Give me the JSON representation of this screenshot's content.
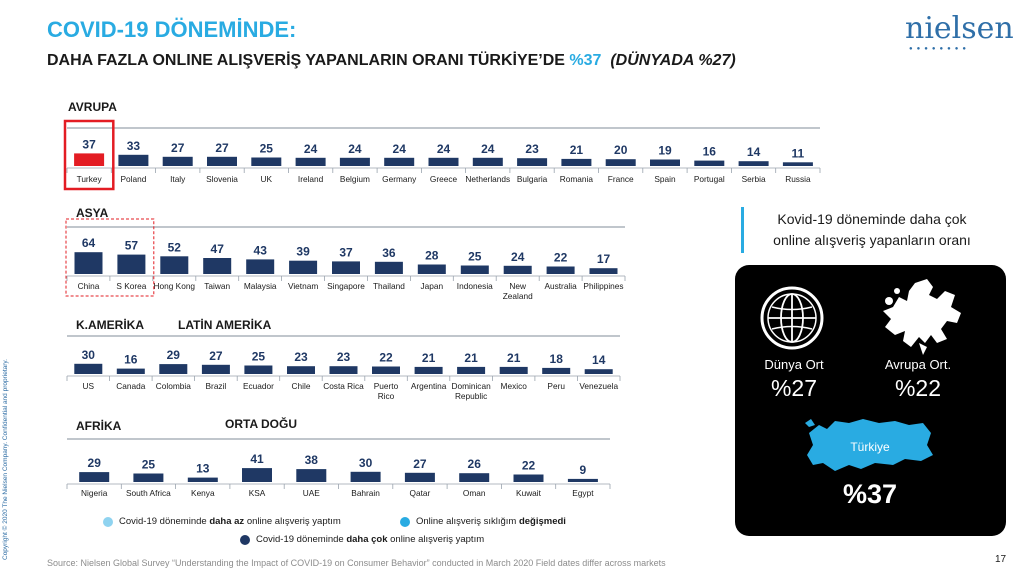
{
  "header": {
    "title": "COVID-19 DÖNEMİNDE:",
    "subtitle_main": "DAHA FAZLA ONLINE ALIŞVERİŞ YAPANLARIN ORANI TÜRKİYE’DE ",
    "subtitle_highlight": "%37",
    "subtitle_italic": "(DÜNYADA %27)"
  },
  "logo": {
    "text": "nielsen",
    "icon": "nielsen-logo-dots"
  },
  "side_copyright": "Copyright © 2020 The Nielsen Company. Confidential and proprietary.",
  "regions": {
    "avrupa": "AVRUPA",
    "asya": "ASYA",
    "k_amerika": "K.AMERİKA",
    "latin_amerika": "LATİN AMERİKA",
    "afrika": "AFRİKA",
    "orta_dogu": "ORTA DOĞU"
  },
  "colors": {
    "bar": "#1f3864",
    "highlight_bar": "#e31c23",
    "highlight_box": "#e31c23",
    "accent": "#29abe2",
    "legend_light": "#8fd3f0",
    "legend_mid": "#29abe2",
    "legend_dark": "#1f3864"
  },
  "chart_data": [
    {
      "type": "bar",
      "region": "AVRUPA",
      "categories": [
        "Turkey",
        "Poland",
        "Italy",
        "Slovenia",
        "UK",
        "Ireland",
        "Belgium",
        "Germany",
        "Greece",
        "Netherlands",
        "Bulgaria",
        "Romania",
        "France",
        "Spain",
        "Portugal",
        "Serbia",
        "Russia"
      ],
      "values": [
        37,
        33,
        27,
        27,
        25,
        24,
        24,
        24,
        24,
        24,
        23,
        21,
        20,
        19,
        16,
        14,
        11
      ],
      "highlight_index": 0
    },
    {
      "type": "bar",
      "region": "ASYA",
      "categories": [
        "China",
        "S Korea",
        "Hong Kong",
        "Taiwan",
        "Malaysia",
        "Vietnam",
        "Singapore",
        "Thailand",
        "Japan",
        "Indonesia",
        "New Zealand",
        "Australia",
        "Philippines"
      ],
      "values": [
        64,
        57,
        52,
        47,
        43,
        39,
        37,
        36,
        28,
        25,
        24,
        22,
        17
      ],
      "highlight_indices": [
        0,
        1
      ]
    },
    {
      "type": "bar",
      "region": "K.AMERİKA / LATİN AMERİKA",
      "categories": [
        "US",
        "Canada",
        "Colombia",
        "Brazil",
        "Ecuador",
        "Chile",
        "Costa Rica",
        "Puerto Rico",
        "Argentina",
        "Dominican Republic",
        "Mexico",
        "Peru",
        "Venezuela"
      ],
      "values": [
        30,
        16,
        29,
        27,
        25,
        23,
        23,
        22,
        21,
        21,
        21,
        18,
        14
      ]
    },
    {
      "type": "bar",
      "region": "AFRİKA / ORTA DOĞU",
      "categories": [
        "Nigeria",
        "South Africa",
        "Kenya",
        "KSA",
        "UAE",
        "Bahrain",
        "Qatar",
        "Oman",
        "Kuwait",
        "Egypt"
      ],
      "values": [
        29,
        25,
        13,
        41,
        38,
        30,
        27,
        26,
        22,
        9
      ]
    }
  ],
  "legend": {
    "item1_pre": "Covid-19 döneminde ",
    "item1_bold": "daha az",
    "item1_post": " online alışveriş yaptım",
    "item2_pre": "Online alışveriş sıklığım ",
    "item2_bold": "değişmedi",
    "item3_pre": "Covid-19 döneminde ",
    "item3_bold": "daha çok",
    "item3_post": " online alışveriş yaptım"
  },
  "info": {
    "line1": "Kovid-19 döneminde daha çok",
    "line2": "online alışveriş yapanların oranı"
  },
  "panel": {
    "world_icon": "globe-icon",
    "europe_icon": "europe-map-icon",
    "turkey_icon": "turkey-map-icon",
    "world_label": "Dünya Ort",
    "world_value": "%27",
    "europe_label": "Avrupa Ort.",
    "europe_value": "%22",
    "turkey_label": "Türkiye",
    "turkey_value": "%37"
  },
  "footer": {
    "source": "Source: Nielsen Global Survey “Understanding the Impact of COVID-19 on Consumer Behavior” conducted in March 2020 Field dates differ across markets",
    "page": "17"
  }
}
